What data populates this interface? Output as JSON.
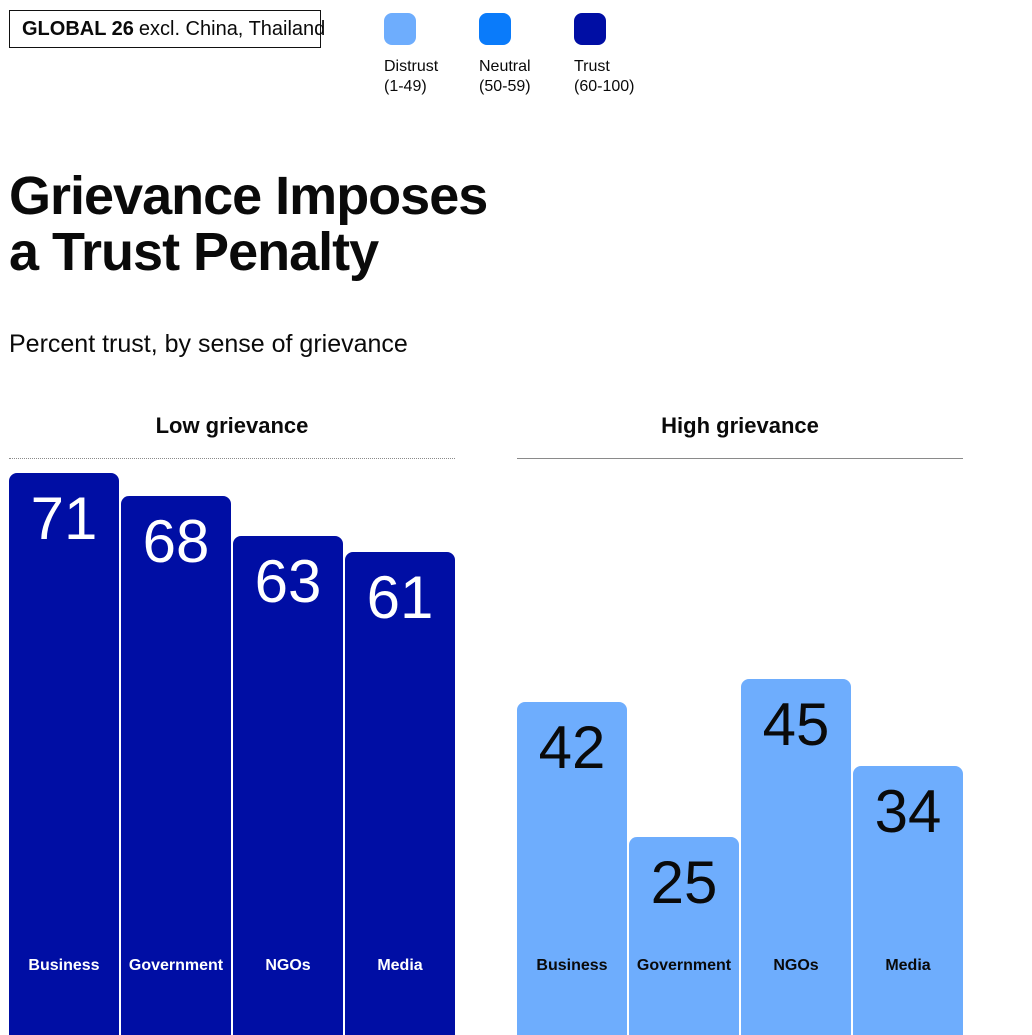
{
  "badge": {
    "bold": "GLOBAL 26",
    "rest": "excl. China, Thailand"
  },
  "legend": [
    {
      "label_line1": "Distrust",
      "label_line2": "(1-49)",
      "color": "#6EADFD"
    },
    {
      "label_line1": "Neutral",
      "label_line2": "(50-59)",
      "color": "#0A7BFA"
    },
    {
      "label_line1": "Trust",
      "label_line2": "(60-100)",
      "color": "#000EA4"
    }
  ],
  "header": {
    "title_line1": "Grievance Imposes",
    "title_line2": "a Trust Penalty",
    "subtitle": "Percent trust, by sense of grievance"
  },
  "chart_data": [
    {
      "type": "bar",
      "title": "Low grievance",
      "categories": [
        "Business",
        "Government",
        "NGOs",
        "Media"
      ],
      "values": [
        71,
        68,
        63,
        61
      ],
      "ylim": [
        0,
        75
      ],
      "grid": false,
      "colors": [
        "#000EA4",
        "#000EA4",
        "#000EA4",
        "#000EA4"
      ],
      "value_text_colors": [
        "#ffffff",
        "#ffffff",
        "#ffffff",
        "#ffffff"
      ]
    },
    {
      "type": "bar",
      "title": "High grievance",
      "categories": [
        "Business",
        "Government",
        "NGOs",
        "Media"
      ],
      "values": [
        42,
        25,
        45,
        34
      ],
      "ylim": [
        0,
        75
      ],
      "grid": false,
      "colors": [
        "#6EADFD",
        "#6EADFD",
        "#6EADFD",
        "#6EADFD"
      ],
      "value_text_colors": [
        "#0a0a0a",
        "#0a0a0a",
        "#0a0a0a",
        "#0a0a0a"
      ]
    }
  ]
}
